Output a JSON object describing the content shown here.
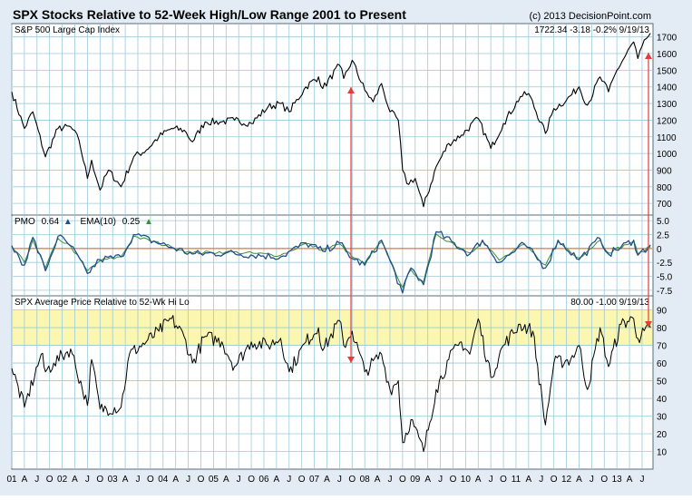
{
  "header": {
    "title": "SPX Stocks Relative to 52-Week High/Low Range 2001 to Present",
    "copyright": "(c) 2013 DecisionPoint.com"
  },
  "colors": {
    "frame_bg": "#e3ecf5",
    "plot_bg": "#ffffff",
    "grid": "#9cc9da",
    "price_line": "#000000",
    "pmo_line": "#1f4f8c",
    "ema_line": "#3a8f3a",
    "zero_line": "#e06020",
    "zone_fill": "#fbf7b0",
    "arrow": "#e43c3c"
  },
  "x_ticks": [
    "01",
    "A",
    "J",
    "O",
    "02",
    "A",
    "J",
    "O",
    "03",
    "A",
    "J",
    "O",
    "04",
    "A",
    "J",
    "O",
    "05",
    "A",
    "J",
    "O",
    "06",
    "A",
    "J",
    "O",
    "07",
    "A",
    "J",
    "O",
    "08",
    "A",
    "J",
    "O",
    "09",
    "A",
    "J",
    "O",
    "10",
    "A",
    "J",
    "O",
    "11",
    "A",
    "J",
    "O",
    "12",
    "A",
    "J",
    "O",
    "13",
    "A",
    "J"
  ],
  "panels": {
    "price": {
      "label": "S&P 500 Large Cap Index",
      "readout": "1722.34   -3.18   -0.2%   9/19/13",
      "y_ticks": [
        "700",
        "800",
        "900",
        "1000",
        "1100",
        "1200",
        "1300",
        "1400",
        "1500",
        "1600",
        "1700"
      ]
    },
    "pmo": {
      "label": "PMO",
      "pmo_value": "0.64",
      "ema_label": "EMA(10)",
      "ema_value": "0.25",
      "y_ticks": [
        "-7.5",
        "-5.0",
        "-2.5",
        "0",
        "2.5",
        "5.0"
      ]
    },
    "avg": {
      "label": "SPX Average Price Relative to 52-Wk Hi Lo",
      "readout": "80.00   -1.00   9/19/13",
      "y_ticks": [
        "10",
        "20",
        "30",
        "40",
        "50",
        "60",
        "70",
        "80",
        "90"
      ]
    }
  },
  "chart_data": [
    {
      "type": "line",
      "title": "S&P 500 Large Cap Index",
      "x": [
        "2001-01",
        "2001-04",
        "2001-06",
        "2001-09",
        "2001-12",
        "2002-03",
        "2002-05",
        "2002-07",
        "2002-08",
        "2002-10",
        "2002-12",
        "2003-03",
        "2003-06",
        "2003-09",
        "2003-12",
        "2004-03",
        "2004-06",
        "2004-08",
        "2004-11",
        "2005-03",
        "2005-06",
        "2005-10",
        "2006-02",
        "2006-05",
        "2006-07",
        "2006-11",
        "2007-02",
        "2007-03",
        "2007-07",
        "2007-08",
        "2007-10",
        "2008-01",
        "2008-03",
        "2008-05",
        "2008-07",
        "2008-09",
        "2008-10",
        "2008-11",
        "2009-01",
        "2009-03",
        "2009-06",
        "2009-09",
        "2009-12",
        "2010-04",
        "2010-07",
        "2010-10",
        "2011-02",
        "2011-04",
        "2011-08",
        "2011-10",
        "2012-01",
        "2012-04",
        "2012-06",
        "2012-09",
        "2012-11",
        "2013-01",
        "2013-05",
        "2013-06",
        "2013-08",
        "2013-09"
      ],
      "series": [
        {
          "values": [
            1370,
            1150,
            1250,
            980,
            1150,
            1160,
            1080,
            850,
            960,
            780,
            900,
            800,
            980,
            1020,
            1100,
            1150,
            1140,
            1070,
            1190,
            1190,
            1200,
            1180,
            1280,
            1300,
            1250,
            1400,
            1460,
            1390,
            1530,
            1450,
            1560,
            1380,
            1310,
            1420,
            1250,
            1200,
            900,
            820,
            850,
            680,
            920,
            1060,
            1110,
            1210,
            1030,
            1180,
            1340,
            1360,
            1120,
            1270,
            1320,
            1400,
            1290,
            1460,
            1370,
            1500,
            1670,
            1570,
            1690,
            1722
          ]
        }
      ],
      "ylim": [
        630,
        1780
      ]
    },
    {
      "type": "line",
      "title": "PMO",
      "x": [
        "2001-01",
        "2001-04",
        "2001-06",
        "2001-09",
        "2001-12",
        "2002-03",
        "2002-07",
        "2002-10",
        "2003-03",
        "2003-06",
        "2004-03",
        "2004-08",
        "2005-04",
        "2006-05",
        "2006-11",
        "2007-03",
        "2007-07",
        "2007-10",
        "2008-01",
        "2008-05",
        "2008-07",
        "2008-10",
        "2008-12",
        "2009-03",
        "2009-06",
        "2010-02",
        "2010-05",
        "2010-09",
        "2011-03",
        "2011-08",
        "2011-11",
        "2012-04",
        "2012-09",
        "2012-11",
        "2013-05",
        "2013-06",
        "2013-09"
      ],
      "series": [
        {
          "name": "PMO",
          "values": [
            0.5,
            -3.0,
            2.0,
            -4.0,
            2.2,
            0.5,
            -4.5,
            -2.0,
            -1.5,
            2.5,
            0.2,
            -1.0,
            -0.8,
            -1.5,
            1.0,
            -0.5,
            1.0,
            -1.8,
            -3.0,
            1.5,
            -2.2,
            -8.0,
            -3.5,
            -6.5,
            3.0,
            -1.0,
            1.5,
            -2.5,
            0.8,
            -3.5,
            1.5,
            -2.0,
            1.8,
            -1.0,
            1.5,
            -1.2,
            0.64
          ]
        },
        {
          "name": "EMA(10)",
          "values": [
            0.3,
            -2.5,
            1.5,
            -3.5,
            1.8,
            0.4,
            -4.0,
            -2.2,
            -1.5,
            2.2,
            0.3,
            -0.8,
            -0.6,
            -1.2,
            0.9,
            -0.3,
            0.8,
            -1.5,
            -2.6,
            1.2,
            -2.0,
            -7.0,
            -3.8,
            -6.0,
            2.6,
            -0.8,
            1.3,
            -2.1,
            0.7,
            -3.0,
            1.2,
            -1.7,
            1.5,
            -0.8,
            1.3,
            -1.0,
            0.25
          ]
        }
      ],
      "ylim": [
        -8.5,
        6.0
      ]
    },
    {
      "type": "line",
      "title": "SPX Average Price Relative to 52-Wk Hi Lo",
      "x": [
        "2001-01",
        "2001-04",
        "2001-08",
        "2001-09",
        "2001-11",
        "2002-03",
        "2002-07",
        "2002-08",
        "2002-10",
        "2003-03",
        "2003-05",
        "2003-09",
        "2003-12",
        "2004-03",
        "2004-06",
        "2004-08",
        "2004-11",
        "2005-03",
        "2005-06",
        "2005-10",
        "2006-02",
        "2006-05",
        "2006-07",
        "2006-11",
        "2007-02",
        "2007-03",
        "2007-07",
        "2007-08",
        "2007-10",
        "2008-01",
        "2008-05",
        "2008-07",
        "2008-09",
        "2008-10",
        "2008-12",
        "2009-03",
        "2009-06",
        "2009-09",
        "2009-12",
        "2010-02",
        "2010-04",
        "2010-07",
        "2010-10",
        "2011-02",
        "2011-05",
        "2011-08",
        "2011-10",
        "2012-02",
        "2012-04",
        "2012-06",
        "2012-09",
        "2012-11",
        "2013-02",
        "2013-05",
        "2013-06",
        "2013-09"
      ],
      "series": [
        {
          "values": [
            57,
            35,
            65,
            55,
            60,
            68,
            36,
            62,
            34,
            35,
            65,
            72,
            78,
            85,
            75,
            60,
            75,
            72,
            58,
            72,
            70,
            74,
            55,
            72,
            80,
            67,
            84,
            70,
            78,
            55,
            65,
            45,
            50,
            15,
            28,
            10,
            45,
            62,
            72,
            65,
            85,
            52,
            70,
            82,
            78,
            25,
            60,
            62,
            70,
            45,
            80,
            58,
            82,
            85,
            74,
            80
          ]
        }
      ],
      "ylim": [
        0,
        98
      ],
      "annotations": [
        "band 70-90"
      ]
    }
  ]
}
